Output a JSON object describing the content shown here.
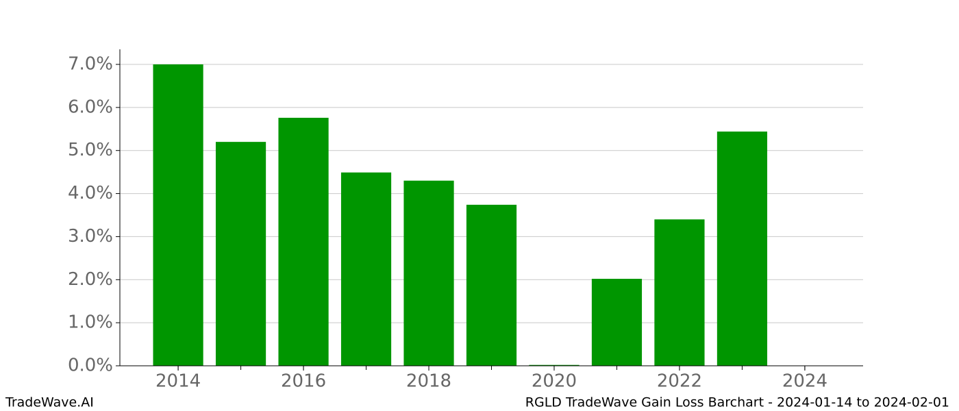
{
  "chart_data": {
    "type": "bar",
    "x": [
      2014,
      2015,
      2016,
      2017,
      2018,
      2019,
      2020,
      2021,
      2022,
      2023,
      2024
    ],
    "values": [
      7.0,
      5.2,
      5.76,
      4.49,
      4.3,
      3.74,
      0.02,
      2.02,
      3.4,
      5.44,
      0
    ],
    "color": "#009600",
    "xlim": [
      2013.07,
      2024.93
    ],
    "xticks": [
      2014,
      2016,
      2018,
      2020,
      2022,
      2024
    ],
    "ylim": [
      0,
      7.35
    ],
    "yticks": [
      {
        "value": 0,
        "label": "0.0%"
      },
      {
        "value": 1,
        "label": "1.0%"
      },
      {
        "value": 2,
        "label": "2.0%"
      },
      {
        "value": 3,
        "label": "3.0%"
      },
      {
        "value": 4,
        "label": "4.0%"
      },
      {
        "value": 5,
        "label": "5.0%"
      },
      {
        "value": 6,
        "label": "6.0%"
      },
      {
        "value": 7,
        "label": "7.0%"
      }
    ],
    "grid": true,
    "footer_left": "TradeWave.AI",
    "footer_right": "RGLD TradeWave Gain Loss Barchart - 2024-01-14 to 2024-02-01"
  }
}
